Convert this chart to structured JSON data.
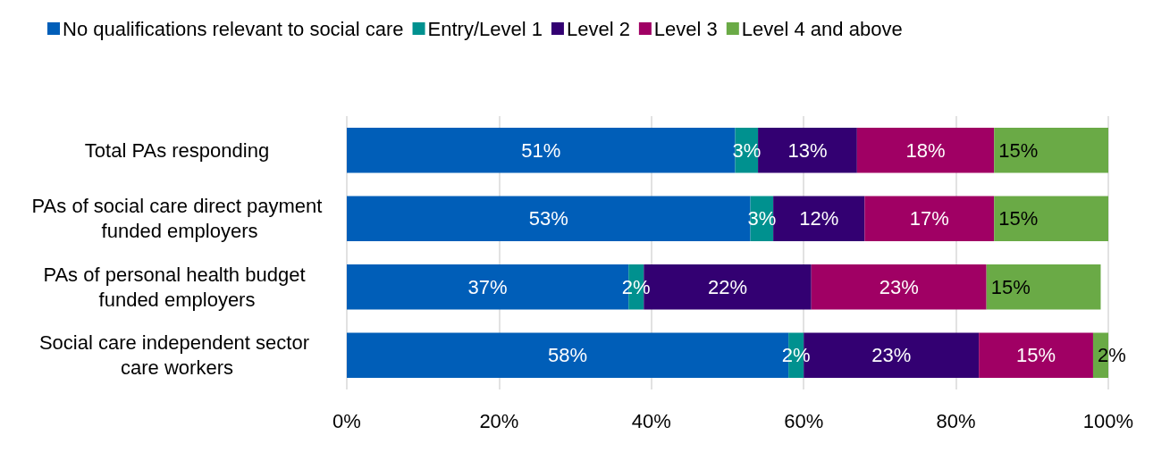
{
  "chart_data": {
    "type": "bar",
    "orientation": "horizontal",
    "stacked": true,
    "categories": [
      "Total PAs responding",
      "PAs of social care direct payment funded employers",
      "PAs of personal health budget funded employers",
      "Social care independent sector care workers"
    ],
    "series": [
      {
        "name": "No qualifications relevant to social care",
        "color": "#005eb8",
        "values": [
          51,
          53,
          37,
          58
        ],
        "value_labels": [
          "51%",
          "53%",
          "37%",
          "58%"
        ]
      },
      {
        "name": "Entry/Level 1",
        "color": "#00918f",
        "values": [
          3,
          3,
          2,
          2
        ],
        "value_labels": [
          "3%",
          "3%",
          "2%",
          "2%"
        ]
      },
      {
        "name": "Level 2",
        "color": "#330072",
        "values": [
          13,
          12,
          22,
          23
        ],
        "value_labels": [
          "13%",
          "12%",
          "22%",
          "23%"
        ]
      },
      {
        "name": "Level 3",
        "color": "#a00064",
        "values": [
          18,
          17,
          23,
          15
        ],
        "value_labels": [
          "18%",
          "17%",
          "23%",
          "15%"
        ]
      },
      {
        "name": "Level 4 and above",
        "color": "#6aaa46",
        "values": [
          15,
          15,
          15,
          2
        ],
        "value_labels": [
          "15%",
          "15%",
          "15%",
          "2%"
        ]
      }
    ],
    "xlim": [
      0,
      100
    ],
    "xticks": [
      {
        "value": 0,
        "label": "0%"
      },
      {
        "value": 20,
        "label": "20%"
      },
      {
        "value": 40,
        "label": "40%"
      },
      {
        "value": 60,
        "label": "60%"
      },
      {
        "value": 80,
        "label": "80%"
      },
      {
        "value": 100,
        "label": "100%"
      }
    ],
    "grid": "x",
    "legend": "top left"
  }
}
